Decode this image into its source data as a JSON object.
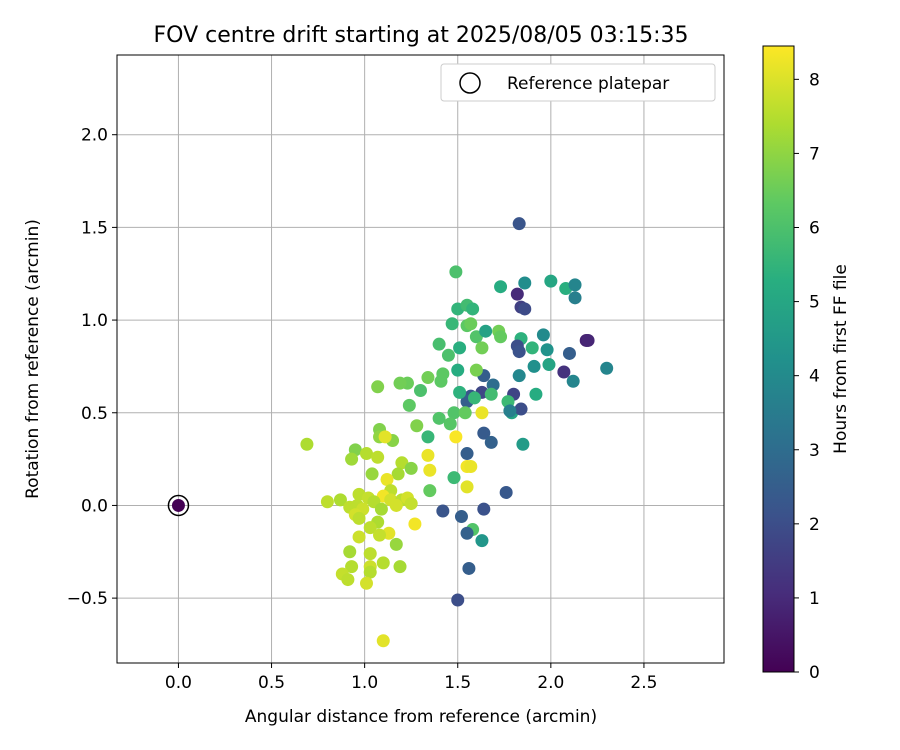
{
  "chart_data": {
    "type": "scatter",
    "title": "FOV centre drift starting at 2025/08/05 03:15:35",
    "xlabel": "Angular distance from reference (arcmin)",
    "ylabel": "Rotation from reference (arcmin)",
    "xlim": [
      -0.33,
      2.93
    ],
    "ylim": [
      -0.85,
      2.43
    ],
    "xticks": [
      0.0,
      0.5,
      1.0,
      1.5,
      2.0,
      2.5
    ],
    "xtick_labels": [
      "0.0",
      "0.5",
      "1.0",
      "1.5",
      "2.0",
      "2.5"
    ],
    "yticks": [
      -0.5,
      0.0,
      0.5,
      1.0,
      1.5,
      2.0
    ],
    "ytick_labels": [
      "−0.5",
      "0.0",
      "0.5",
      "1.0",
      "1.5",
      "2.0"
    ],
    "grid": true,
    "legend": {
      "position": "top-right",
      "entries": [
        "Reference platepar"
      ]
    },
    "colorbar": {
      "label": "Hours from first FF file",
      "colormap": "viridis",
      "range": [
        0,
        8.45
      ],
      "ticks": [
        0,
        1,
        2,
        3,
        4,
        5,
        6,
        7,
        8
      ],
      "tick_labels": [
        "0",
        "1",
        "2",
        "3",
        "4",
        "5",
        "6",
        "7",
        "8"
      ]
    },
    "reference_point": {
      "x": 0.0,
      "y": 0.0,
      "c": 0.0
    },
    "points": [
      {
        "x": 1.83,
        "y": 1.52,
        "c": 2.2
      },
      {
        "x": 1.86,
        "y": 1.2,
        "c": 4.1
      },
      {
        "x": 2.0,
        "y": 1.21,
        "c": 5.0
      },
      {
        "x": 2.08,
        "y": 1.17,
        "c": 5.3
      },
      {
        "x": 2.13,
        "y": 1.19,
        "c": 3.8
      },
      {
        "x": 2.13,
        "y": 1.12,
        "c": 3.6
      },
      {
        "x": 1.82,
        "y": 1.14,
        "c": 1.0
      },
      {
        "x": 1.84,
        "y": 1.07,
        "c": 1.6
      },
      {
        "x": 1.86,
        "y": 1.06,
        "c": 1.9
      },
      {
        "x": 1.73,
        "y": 1.18,
        "c": 5.2
      },
      {
        "x": 1.49,
        "y": 1.26,
        "c": 6.0
      },
      {
        "x": 1.5,
        "y": 1.06,
        "c": 5.5
      },
      {
        "x": 1.55,
        "y": 1.08,
        "c": 5.8
      },
      {
        "x": 1.58,
        "y": 1.06,
        "c": 5.5
      },
      {
        "x": 1.47,
        "y": 0.98,
        "c": 5.6
      },
      {
        "x": 1.55,
        "y": 0.97,
        "c": 6.3
      },
      {
        "x": 1.57,
        "y": 0.98,
        "c": 6.5
      },
      {
        "x": 1.6,
        "y": 0.91,
        "c": 6.1
      },
      {
        "x": 1.65,
        "y": 0.94,
        "c": 4.8
      },
      {
        "x": 1.72,
        "y": 0.94,
        "c": 6.6
      },
      {
        "x": 1.73,
        "y": 0.91,
        "c": 6.4
      },
      {
        "x": 1.63,
        "y": 0.85,
        "c": 6.6
      },
      {
        "x": 1.51,
        "y": 0.85,
        "c": 5.3
      },
      {
        "x": 1.4,
        "y": 0.87,
        "c": 5.9
      },
      {
        "x": 1.45,
        "y": 0.81,
        "c": 6.0
      },
      {
        "x": 1.84,
        "y": 0.9,
        "c": 5.4
      },
      {
        "x": 1.82,
        "y": 0.86,
        "c": 2.0
      },
      {
        "x": 1.83,
        "y": 0.83,
        "c": 2.1
      },
      {
        "x": 1.9,
        "y": 0.85,
        "c": 5.5
      },
      {
        "x": 1.96,
        "y": 0.92,
        "c": 4.0
      },
      {
        "x": 1.98,
        "y": 0.84,
        "c": 4.3
      },
      {
        "x": 2.19,
        "y": 0.89,
        "c": 0.8
      },
      {
        "x": 2.2,
        "y": 0.89,
        "c": 0.9
      },
      {
        "x": 2.1,
        "y": 0.82,
        "c": 2.5
      },
      {
        "x": 1.99,
        "y": 0.76,
        "c": 4.9
      },
      {
        "x": 2.07,
        "y": 0.72,
        "c": 1.2
      },
      {
        "x": 2.12,
        "y": 0.67,
        "c": 3.8
      },
      {
        "x": 2.3,
        "y": 0.74,
        "c": 3.8
      },
      {
        "x": 1.91,
        "y": 0.75,
        "c": 4.2
      },
      {
        "x": 1.83,
        "y": 0.7,
        "c": 3.9
      },
      {
        "x": 1.64,
        "y": 0.7,
        "c": 2.5
      },
      {
        "x": 1.6,
        "y": 0.73,
        "c": 6.7
      },
      {
        "x": 1.5,
        "y": 0.73,
        "c": 5.2
      },
      {
        "x": 1.42,
        "y": 0.71,
        "c": 6.3
      },
      {
        "x": 1.41,
        "y": 0.67,
        "c": 6.3
      },
      {
        "x": 1.34,
        "y": 0.69,
        "c": 6.6
      },
      {
        "x": 1.23,
        "y": 0.66,
        "c": 6.5
      },
      {
        "x": 1.19,
        "y": 0.66,
        "c": 6.6
      },
      {
        "x": 1.07,
        "y": 0.64,
        "c": 6.8
      },
      {
        "x": 1.3,
        "y": 0.62,
        "c": 6.0
      },
      {
        "x": 1.24,
        "y": 0.54,
        "c": 6.3
      },
      {
        "x": 1.69,
        "y": 0.65,
        "c": 3.0
      },
      {
        "x": 1.63,
        "y": 0.61,
        "c": 1.8
      },
      {
        "x": 1.57,
        "y": 0.59,
        "c": 2.2
      },
      {
        "x": 1.55,
        "y": 0.56,
        "c": 2.5
      },
      {
        "x": 1.51,
        "y": 0.61,
        "c": 5.4
      },
      {
        "x": 1.59,
        "y": 0.58,
        "c": 5.6
      },
      {
        "x": 1.68,
        "y": 0.6,
        "c": 5.8
      },
      {
        "x": 1.8,
        "y": 0.6,
        "c": 1.7
      },
      {
        "x": 1.77,
        "y": 0.56,
        "c": 5.7
      },
      {
        "x": 1.92,
        "y": 0.6,
        "c": 5.2
      },
      {
        "x": 1.79,
        "y": 0.5,
        "c": 4.9
      },
      {
        "x": 1.84,
        "y": 0.52,
        "c": 2.0
      },
      {
        "x": 1.78,
        "y": 0.51,
        "c": 3.6
      },
      {
        "x": 1.48,
        "y": 0.5,
        "c": 6.1
      },
      {
        "x": 1.54,
        "y": 0.5,
        "c": 6.4
      },
      {
        "x": 1.63,
        "y": 0.5,
        "c": 8.2
      },
      {
        "x": 1.4,
        "y": 0.47,
        "c": 6.1
      },
      {
        "x": 1.46,
        "y": 0.44,
        "c": 6.2
      },
      {
        "x": 1.28,
        "y": 0.43,
        "c": 6.8
      },
      {
        "x": 1.34,
        "y": 0.37,
        "c": 5.6
      },
      {
        "x": 1.49,
        "y": 0.37,
        "c": 8.4
      },
      {
        "x": 1.64,
        "y": 0.39,
        "c": 2.4
      },
      {
        "x": 1.68,
        "y": 0.34,
        "c": 2.6
      },
      {
        "x": 1.85,
        "y": 0.33,
        "c": 4.6
      },
      {
        "x": 1.08,
        "y": 0.41,
        "c": 6.8
      },
      {
        "x": 1.08,
        "y": 0.37,
        "c": 7.0
      },
      {
        "x": 1.15,
        "y": 0.35,
        "c": 6.9
      },
      {
        "x": 1.11,
        "y": 0.37,
        "c": 8.1
      },
      {
        "x": 0.69,
        "y": 0.33,
        "c": 7.4
      },
      {
        "x": 0.95,
        "y": 0.3,
        "c": 6.8
      },
      {
        "x": 0.93,
        "y": 0.25,
        "c": 7.2
      },
      {
        "x": 1.01,
        "y": 0.28,
        "c": 7.5
      },
      {
        "x": 1.07,
        "y": 0.26,
        "c": 7.6
      },
      {
        "x": 1.34,
        "y": 0.27,
        "c": 8.2
      },
      {
        "x": 1.35,
        "y": 0.19,
        "c": 8.2
      },
      {
        "x": 1.55,
        "y": 0.28,
        "c": 2.5
      },
      {
        "x": 1.55,
        "y": 0.21,
        "c": 8.3
      },
      {
        "x": 1.57,
        "y": 0.21,
        "c": 8.2
      },
      {
        "x": 1.2,
        "y": 0.23,
        "c": 7.5
      },
      {
        "x": 1.25,
        "y": 0.2,
        "c": 6.9
      },
      {
        "x": 1.18,
        "y": 0.17,
        "c": 7.3
      },
      {
        "x": 1.04,
        "y": 0.17,
        "c": 7.1
      },
      {
        "x": 1.12,
        "y": 0.14,
        "c": 8.2
      },
      {
        "x": 1.48,
        "y": 0.15,
        "c": 5.7
      },
      {
        "x": 1.55,
        "y": 0.1,
        "c": 8.1
      },
      {
        "x": 1.35,
        "y": 0.08,
        "c": 6.4
      },
      {
        "x": 1.14,
        "y": 0.08,
        "c": 7.6
      },
      {
        "x": 1.76,
        "y": 0.07,
        "c": 2.3
      },
      {
        "x": 0.97,
        "y": 0.06,
        "c": 7.6
      },
      {
        "x": 1.02,
        "y": 0.04,
        "c": 7.7
      },
      {
        "x": 1.1,
        "y": 0.05,
        "c": 8.3
      },
      {
        "x": 1.14,
        "y": 0.03,
        "c": 7.9
      },
      {
        "x": 1.2,
        "y": 0.03,
        "c": 7.6
      },
      {
        "x": 1.23,
        "y": 0.04,
        "c": 7.9
      },
      {
        "x": 0.8,
        "y": 0.02,
        "c": 7.6
      },
      {
        "x": 0.87,
        "y": 0.03,
        "c": 7.4
      },
      {
        "x": 0.92,
        "y": -0.01,
        "c": 7.6
      },
      {
        "x": 0.96,
        "y": 0.0,
        "c": 7.6
      },
      {
        "x": 0.99,
        "y": -0.02,
        "c": 7.8
      },
      {
        "x": 1.05,
        "y": 0.02,
        "c": 7.5
      },
      {
        "x": 1.09,
        "y": -0.02,
        "c": 7.3
      },
      {
        "x": 1.17,
        "y": 0.0,
        "c": 7.9
      },
      {
        "x": 1.25,
        "y": 0.01,
        "c": 7.7
      },
      {
        "x": 0.95,
        "y": -0.05,
        "c": 7.9
      },
      {
        "x": 0.97,
        "y": -0.07,
        "c": 7.6
      },
      {
        "x": 1.07,
        "y": -0.09,
        "c": 7.4
      },
      {
        "x": 1.42,
        "y": -0.03,
        "c": 2.2
      },
      {
        "x": 1.64,
        "y": -0.02,
        "c": 2.1
      },
      {
        "x": 1.52,
        "y": -0.06,
        "c": 2.5
      },
      {
        "x": 1.27,
        "y": -0.1,
        "c": 8.3
      },
      {
        "x": 1.03,
        "y": -0.12,
        "c": 7.6
      },
      {
        "x": 1.13,
        "y": -0.15,
        "c": 8.1
      },
      {
        "x": 1.58,
        "y": -0.13,
        "c": 6.1
      },
      {
        "x": 1.55,
        "y": -0.15,
        "c": 2.6
      },
      {
        "x": 1.63,
        "y": -0.19,
        "c": 4.4
      },
      {
        "x": 0.97,
        "y": -0.17,
        "c": 7.8
      },
      {
        "x": 1.08,
        "y": -0.16,
        "c": 7.7
      },
      {
        "x": 1.17,
        "y": -0.21,
        "c": 7.1
      },
      {
        "x": 0.92,
        "y": -0.25,
        "c": 7.3
      },
      {
        "x": 1.03,
        "y": -0.26,
        "c": 7.6
      },
      {
        "x": 1.1,
        "y": -0.31,
        "c": 7.5
      },
      {
        "x": 0.93,
        "y": -0.33,
        "c": 7.5
      },
      {
        "x": 1.03,
        "y": -0.33,
        "c": 7.8
      },
      {
        "x": 1.19,
        "y": -0.33,
        "c": 7.3
      },
      {
        "x": 0.88,
        "y": -0.37,
        "c": 7.7
      },
      {
        "x": 1.03,
        "y": -0.36,
        "c": 7.5
      },
      {
        "x": 0.91,
        "y": -0.4,
        "c": 7.6
      },
      {
        "x": 1.01,
        "y": -0.42,
        "c": 7.9
      },
      {
        "x": 1.56,
        "y": -0.34,
        "c": 2.5
      },
      {
        "x": 1.5,
        "y": -0.51,
        "c": 2.0
      },
      {
        "x": 1.1,
        "y": -0.73,
        "c": 8.1
      }
    ]
  }
}
